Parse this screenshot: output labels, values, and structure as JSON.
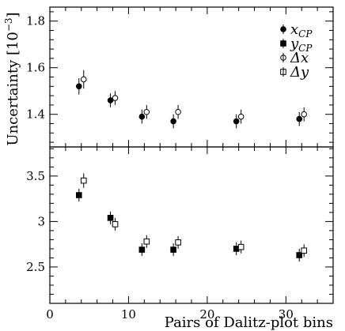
{
  "chart_data": {
    "type": "scatter",
    "xlabel": "Pairs of Dalitz-plot bins",
    "ylabel": "Uncertainty [10",
    "ylabel_exponent": "−3",
    "ylabel_close": "]",
    "xlim": [
      0,
      36
    ],
    "x_ticks": [
      0,
      10,
      20,
      30
    ],
    "x_tick_labels": [
      "0",
      "10",
      "20",
      "30"
    ],
    "panels": [
      {
        "name": "top",
        "ylim": [
          1.26,
          1.86
        ],
        "y_ticks": [
          1.4,
          1.6,
          1.8
        ],
        "y_tick_labels": [
          "1.4",
          "1.6",
          "1.8"
        ],
        "legend_position": "top-right",
        "series": [
          {
            "name": "x_CP",
            "label_main": "x",
            "label_sub": "CP",
            "marker": "filled-circle",
            "offset": -0.3,
            "points": [
              {
                "x": 4,
                "y": 1.52,
                "err": 0.035
              },
              {
                "x": 8,
                "y": 1.46,
                "err": 0.03
              },
              {
                "x": 12,
                "y": 1.39,
                "err": 0.03
              },
              {
                "x": 16,
                "y": 1.37,
                "err": 0.03
              },
              {
                "x": 24,
                "y": 1.37,
                "err": 0.03
              },
              {
                "x": 32,
                "y": 1.38,
                "err": 0.03
              }
            ]
          },
          {
            "name": "Δx",
            "label_main": "Δx",
            "label_sub": "",
            "marker": "open-circle",
            "offset": 0.3,
            "points": [
              {
                "x": 4,
                "y": 1.55,
                "err": 0.04
              },
              {
                "x": 8,
                "y": 1.47,
                "err": 0.03
              },
              {
                "x": 12,
                "y": 1.41,
                "err": 0.03
              },
              {
                "x": 16,
                "y": 1.41,
                "err": 0.03
              },
              {
                "x": 24,
                "y": 1.39,
                "err": 0.03
              },
              {
                "x": 32,
                "y": 1.4,
                "err": 0.03
              }
            ]
          }
        ]
      },
      {
        "name": "bottom",
        "ylim": [
          2.1,
          3.82
        ],
        "y_ticks": [
          2.5,
          3,
          3.5
        ],
        "y_tick_labels": [
          "2.5",
          "3",
          "3.5"
        ],
        "series": [
          {
            "name": "y_CP",
            "label_main": "y",
            "label_sub": "CP",
            "marker": "filled-square",
            "offset": -0.3,
            "points": [
              {
                "x": 4,
                "y": 3.29,
                "err": 0.07
              },
              {
                "x": 8,
                "y": 3.04,
                "err": 0.07
              },
              {
                "x": 12,
                "y": 2.69,
                "err": 0.07
              },
              {
                "x": 16,
                "y": 2.69,
                "err": 0.07
              },
              {
                "x": 24,
                "y": 2.7,
                "err": 0.07
              },
              {
                "x": 32,
                "y": 2.63,
                "err": 0.07
              }
            ]
          },
          {
            "name": "Δy",
            "label_main": "Δy",
            "label_sub": "",
            "marker": "open-square",
            "offset": 0.3,
            "points": [
              {
                "x": 4,
                "y": 3.45,
                "err": 0.08
              },
              {
                "x": 8,
                "y": 2.97,
                "err": 0.07
              },
              {
                "x": 12,
                "y": 2.78,
                "err": 0.07
              },
              {
                "x": 16,
                "y": 2.77,
                "err": 0.07
              },
              {
                "x": 24,
                "y": 2.72,
                "err": 0.07
              },
              {
                "x": 32,
                "y": 2.68,
                "err": 0.07
              }
            ]
          }
        ]
      }
    ],
    "legend": [
      {
        "name": "x_CP",
        "main": "x",
        "sub": "CP",
        "marker": "filled-circle"
      },
      {
        "name": "y_CP",
        "main": "y",
        "sub": "CP",
        "marker": "filled-square"
      },
      {
        "name": "Δx",
        "main": "Δx",
        "sub": "",
        "marker": "open-circle"
      },
      {
        "name": "Δy",
        "main": "Δy",
        "sub": "",
        "marker": "open-square"
      }
    ]
  }
}
